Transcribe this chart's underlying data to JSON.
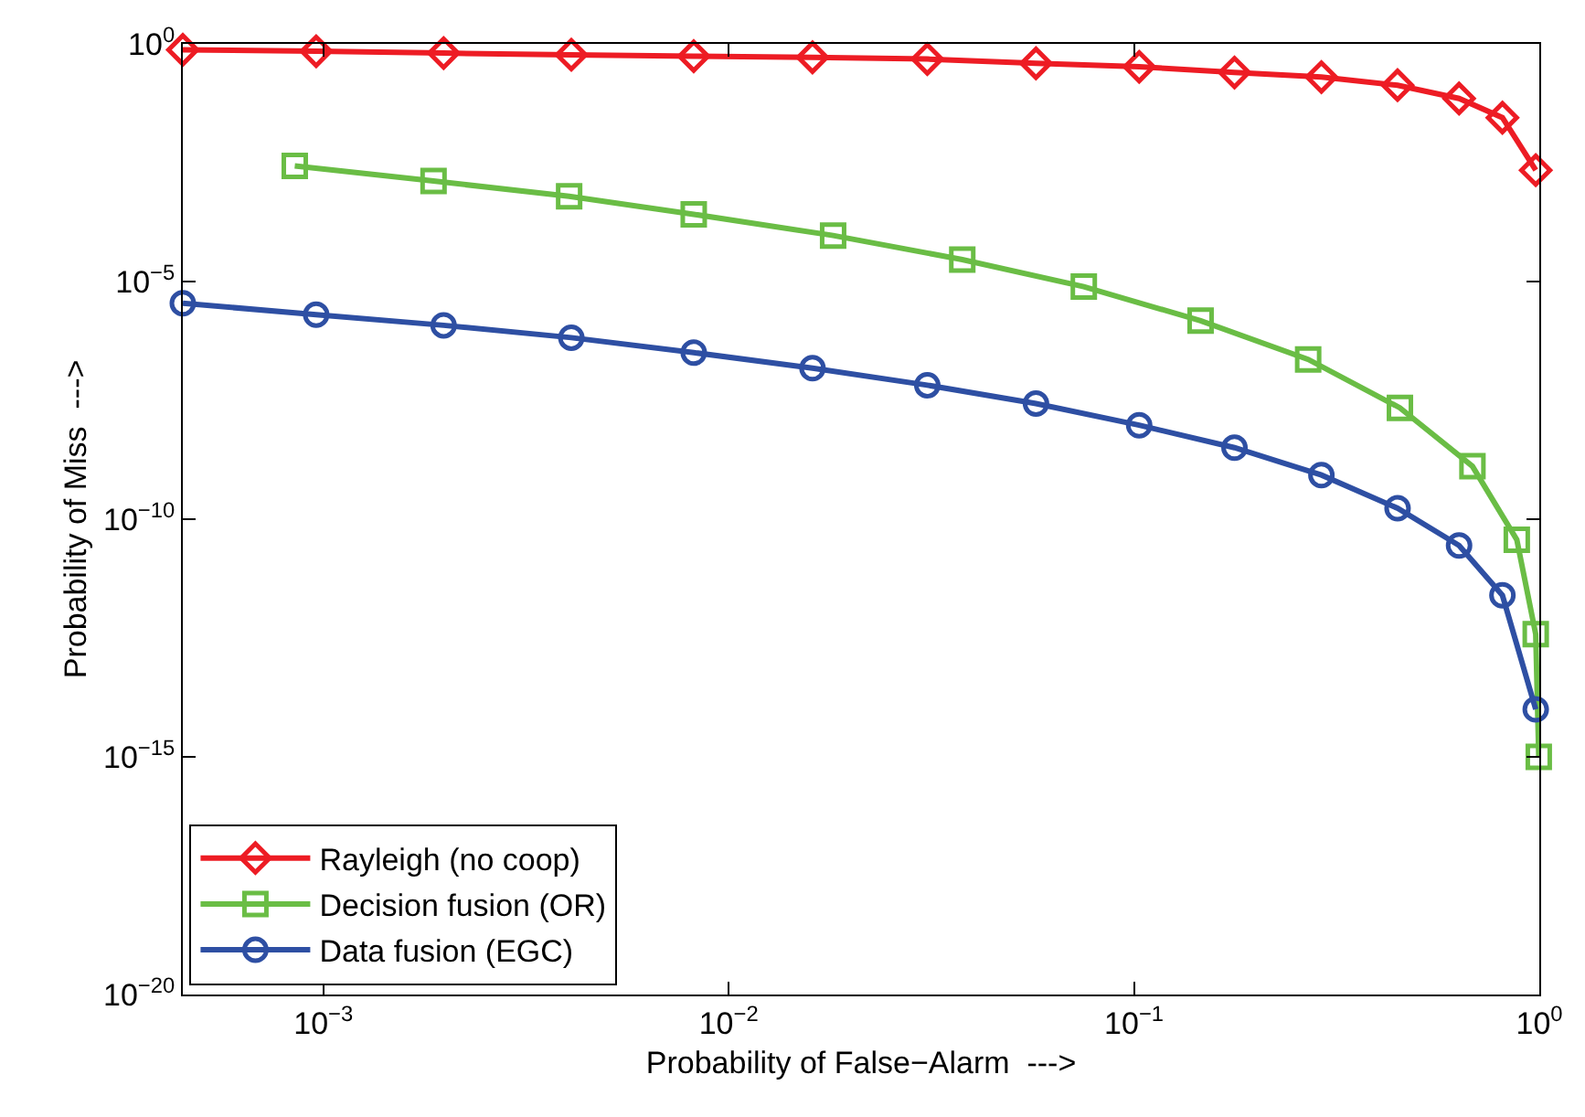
{
  "chart_data": {
    "type": "line",
    "xlabel": "Probability of False−Alarm  --->",
    "ylabel": "Probability of Miss  --->",
    "log": "xy",
    "legend": "bottom left",
    "line_style": "solid",
    "xlim": [
      0.00045,
      1
    ],
    "ylim": [
      1e-20,
      1
    ],
    "xticks": [
      {
        "value": 0.001,
        "label": "10$^{−3}$"
      },
      {
        "value": 0.01,
        "label": "10$^{−2}$"
      },
      {
        "value": 0.1,
        "label": "10$^{−1}$"
      },
      {
        "value": 1,
        "label": "10$^{0}$"
      }
    ],
    "yticks": [
      {
        "value": 1e-20,
        "label": "10$^{−20}$"
      },
      {
        "value": 1e-15,
        "label": "10$^{−15}$"
      },
      {
        "value": 1e-10,
        "label": "10$^{−10}$"
      },
      {
        "value": 1e-05,
        "label": "10$^{−5}$"
      },
      {
        "value": 1,
        "label": "10$^{0}$"
      }
    ],
    "series": [
      {
        "name": "Rayleigh (no coop)",
        "color": "#ed1c24",
        "marker": "diamond",
        "x": [
          0.00045,
          0.00096,
          0.00198,
          0.00409,
          0.0082,
          0.0161,
          0.0309,
          0.0573,
          0.103,
          0.177,
          0.29,
          0.447,
          0.634,
          0.811,
          0.98
        ],
        "values": [
          0.75,
          0.7,
          0.64,
          0.59,
          0.55,
          0.52,
          0.48,
          0.39,
          0.33,
          0.25,
          0.2,
          0.135,
          0.071,
          0.028,
          0.0022
        ]
      },
      {
        "name": "Decision fusion (OR)",
        "color": "#6abd45",
        "marker": "square",
        "x": [
          0.00085,
          0.00187,
          0.00404,
          0.0082,
          0.0181,
          0.0377,
          0.0752,
          0.146,
          0.269,
          0.453,
          0.684,
          0.88,
          0.98,
          0.997
        ],
        "values": [
          0.0027,
          0.0013,
          0.00062,
          0.00026,
          9.3e-05,
          2.9e-05,
          7.8e-06,
          1.5e-06,
          2.3e-07,
          2.2e-08,
          1.3e-09,
          3.7e-11,
          3.8e-13,
          1e-15
        ]
      },
      {
        "name": "Data fusion (EGC)",
        "color": "#2e4fa3",
        "marker": "circle",
        "x": [
          0.00045,
          0.00096,
          0.00198,
          0.00409,
          0.0082,
          0.0161,
          0.0309,
          0.0573,
          0.103,
          0.177,
          0.29,
          0.447,
          0.634,
          0.811,
          0.98
        ],
        "values": [
          3.5e-06,
          2e-06,
          1.2e-06,
          6.6e-07,
          3.2e-07,
          1.5e-07,
          6.6e-08,
          2.7e-08,
          9.5e-09,
          3.2e-09,
          8.5e-10,
          1.7e-10,
          2.8e-11,
          2.5e-12,
          1e-14
        ]
      }
    ]
  }
}
